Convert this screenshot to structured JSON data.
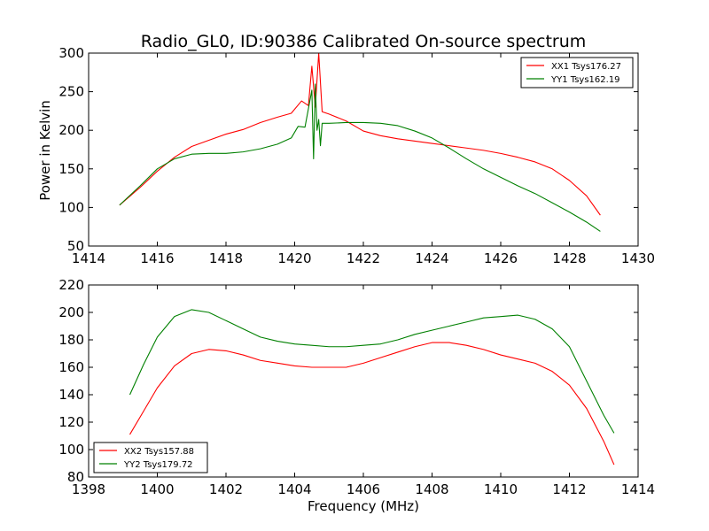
{
  "figure": {
    "title": "Radio_GL0, ID:90386 Calibrated On-source spectrum"
  },
  "chart_data": [
    {
      "type": "line",
      "title": "Radio_GL0, ID:90386 Calibrated On-source spectrum",
      "xlabel": "",
      "ylabel": "Power in Kelvin",
      "xlim": [
        1414,
        1430
      ],
      "ylim": [
        50,
        300
      ],
      "xticks": [
        1414,
        1416,
        1418,
        1420,
        1422,
        1424,
        1426,
        1428,
        1430
      ],
      "yticks": [
        50,
        100,
        150,
        200,
        250,
        300
      ],
      "grid": false,
      "legend_position": "top-right",
      "series": [
        {
          "name": "XX1 Tsys176.27",
          "color": "#ff0000",
          "points": [
            [
              1414.9,
              103
            ],
            [
              1415.5,
              126
            ],
            [
              1416.0,
              147
            ],
            [
              1416.5,
              165
            ],
            [
              1417.0,
              179
            ],
            [
              1417.5,
              187
            ],
            [
              1418.0,
              195
            ],
            [
              1418.5,
              201
            ],
            [
              1419.0,
              210
            ],
            [
              1419.5,
              217
            ],
            [
              1419.9,
              222
            ],
            [
              1420.2,
              238
            ],
            [
              1420.4,
              232
            ],
            [
              1420.5,
              283
            ],
            [
              1420.6,
              230
            ],
            [
              1420.7,
              300
            ],
            [
              1420.8,
              224
            ],
            [
              1421.0,
              221
            ],
            [
              1421.5,
              212
            ],
            [
              1422.0,
              199
            ],
            [
              1422.5,
              193
            ],
            [
              1423.0,
              189
            ],
            [
              1423.5,
              186
            ],
            [
              1424.0,
              183
            ],
            [
              1424.5,
              180
            ],
            [
              1425.0,
              177
            ],
            [
              1425.5,
              174
            ],
            [
              1426.0,
              170
            ],
            [
              1426.5,
              165
            ],
            [
              1427.0,
              159
            ],
            [
              1427.5,
              150
            ],
            [
              1428.0,
              135
            ],
            [
              1428.5,
              115
            ],
            [
              1428.9,
              90
            ]
          ]
        },
        {
          "name": "YY1 Tsys162.19",
          "color": "#008000",
          "points": [
            [
              1414.9,
              103
            ],
            [
              1415.5,
              128
            ],
            [
              1416.0,
              150
            ],
            [
              1416.5,
              163
            ],
            [
              1417.0,
              169
            ],
            [
              1417.5,
              170
            ],
            [
              1418.0,
              170
            ],
            [
              1418.5,
              172
            ],
            [
              1419.0,
              176
            ],
            [
              1419.5,
              182
            ],
            [
              1419.9,
              190
            ],
            [
              1420.1,
              205
            ],
            [
              1420.3,
              204
            ],
            [
              1420.5,
              252
            ],
            [
              1420.55,
              163
            ],
            [
              1420.6,
              260
            ],
            [
              1420.65,
              200
            ],
            [
              1420.7,
              214
            ],
            [
              1420.75,
              180
            ],
            [
              1420.8,
              209
            ],
            [
              1421.0,
              209
            ],
            [
              1421.5,
              210
            ],
            [
              1422.0,
              210
            ],
            [
              1422.5,
              209
            ],
            [
              1423.0,
              206
            ],
            [
              1423.5,
              199
            ],
            [
              1424.0,
              190
            ],
            [
              1424.5,
              177
            ],
            [
              1425.0,
              163
            ],
            [
              1425.5,
              150
            ],
            [
              1426.0,
              139
            ],
            [
              1426.5,
              128
            ],
            [
              1427.0,
              118
            ],
            [
              1427.5,
              106
            ],
            [
              1428.0,
              94
            ],
            [
              1428.5,
              81
            ],
            [
              1428.9,
              69
            ]
          ]
        }
      ]
    },
    {
      "type": "line",
      "title": "",
      "xlabel": "Frequency (MHz)",
      "ylabel": "",
      "xlim": [
        1398,
        1414
      ],
      "ylim": [
        80,
        220
      ],
      "xticks": [
        1398,
        1400,
        1402,
        1404,
        1406,
        1408,
        1410,
        1412,
        1414
      ],
      "yticks": [
        80,
        100,
        120,
        140,
        160,
        180,
        200,
        220
      ],
      "grid": false,
      "legend_position": "bottom-left",
      "series": [
        {
          "name": "XX2 Tsys157.88",
          "color": "#ff0000",
          "points": [
            [
              1399.2,
              111
            ],
            [
              1399.6,
              128
            ],
            [
              1400.0,
              145
            ],
            [
              1400.5,
              161
            ],
            [
              1401.0,
              170
            ],
            [
              1401.5,
              173
            ],
            [
              1402.0,
              172
            ],
            [
              1402.5,
              169
            ],
            [
              1403.0,
              165
            ],
            [
              1403.5,
              163
            ],
            [
              1404.0,
              161
            ],
            [
              1404.5,
              160
            ],
            [
              1405.0,
              160
            ],
            [
              1405.5,
              160
            ],
            [
              1406.0,
              163
            ],
            [
              1406.5,
              167
            ],
            [
              1407.0,
              171
            ],
            [
              1407.5,
              175
            ],
            [
              1408.0,
              178
            ],
            [
              1408.5,
              178
            ],
            [
              1409.0,
              176
            ],
            [
              1409.5,
              173
            ],
            [
              1410.0,
              169
            ],
            [
              1410.5,
              166
            ],
            [
              1411.0,
              163
            ],
            [
              1411.5,
              157
            ],
            [
              1412.0,
              147
            ],
            [
              1412.5,
              130
            ],
            [
              1413.0,
              106
            ],
            [
              1413.3,
              89
            ]
          ]
        },
        {
          "name": "YY2 Tsys179.72",
          "color": "#008000",
          "points": [
            [
              1399.2,
              140
            ],
            [
              1399.6,
              162
            ],
            [
              1400.0,
              182
            ],
            [
              1400.5,
              197
            ],
            [
              1401.0,
              202
            ],
            [
              1401.5,
              200
            ],
            [
              1402.0,
              194
            ],
            [
              1402.5,
              188
            ],
            [
              1403.0,
              182
            ],
            [
              1403.5,
              179
            ],
            [
              1404.0,
              177
            ],
            [
              1404.5,
              176
            ],
            [
              1405.0,
              175
            ],
            [
              1405.5,
              175
            ],
            [
              1406.0,
              176
            ],
            [
              1406.5,
              177
            ],
            [
              1407.0,
              180
            ],
            [
              1407.5,
              184
            ],
            [
              1408.0,
              187
            ],
            [
              1408.5,
              190
            ],
            [
              1409.0,
              193
            ],
            [
              1409.5,
              196
            ],
            [
              1410.0,
              197
            ],
            [
              1410.5,
              198
            ],
            [
              1411.0,
              195
            ],
            [
              1411.5,
              188
            ],
            [
              1412.0,
              175
            ],
            [
              1412.5,
              150
            ],
            [
              1413.0,
              125
            ],
            [
              1413.3,
              112
            ]
          ]
        }
      ]
    }
  ]
}
